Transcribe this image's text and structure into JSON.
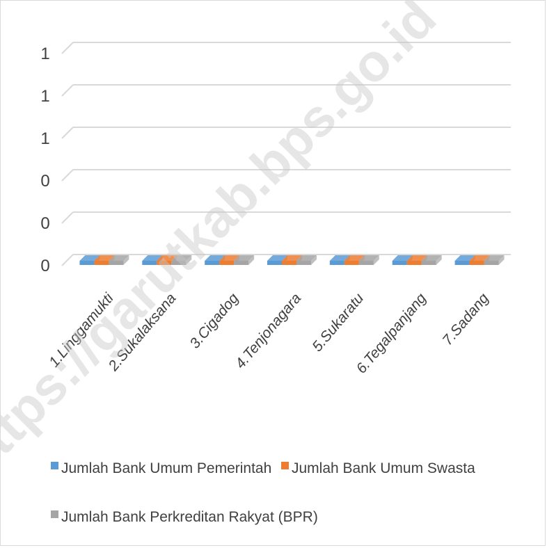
{
  "chart_data": {
    "type": "bar",
    "view": "3d-clustered-column",
    "categories": [
      "1.Linggamukti",
      "2.Sukalaksana",
      "3.Cigadog",
      "4.Tenjonagara",
      "5.Sukaratu",
      "6.Tegalpanjang",
      "7.Sadang"
    ],
    "series": [
      {
        "name": "Jumlah Bank Umum Pemerintah",
        "color": "#5B9BD5",
        "values": [
          0,
          0,
          0,
          0,
          0,
          0,
          0
        ]
      },
      {
        "name": "Jumlah Bank Umum Swasta",
        "color": "#ED7D31",
        "values": [
          0,
          0,
          0,
          0,
          0,
          0,
          0
        ]
      },
      {
        "name": "Jumlah Bank Perkreditan Rakyat (BPR)",
        "color": "#A5A5A5",
        "values": [
          0,
          0,
          0,
          0,
          0,
          0,
          0
        ]
      }
    ],
    "y_tick_labels": [
      "0",
      "0",
      "0",
      "1",
      "1",
      "1"
    ],
    "ylim": [
      0,
      1
    ],
    "grid": true,
    "legend": "bottom",
    "title": "",
    "xlabel": "",
    "ylabel": ""
  },
  "watermark": "https://garutkab.bps.go.id"
}
